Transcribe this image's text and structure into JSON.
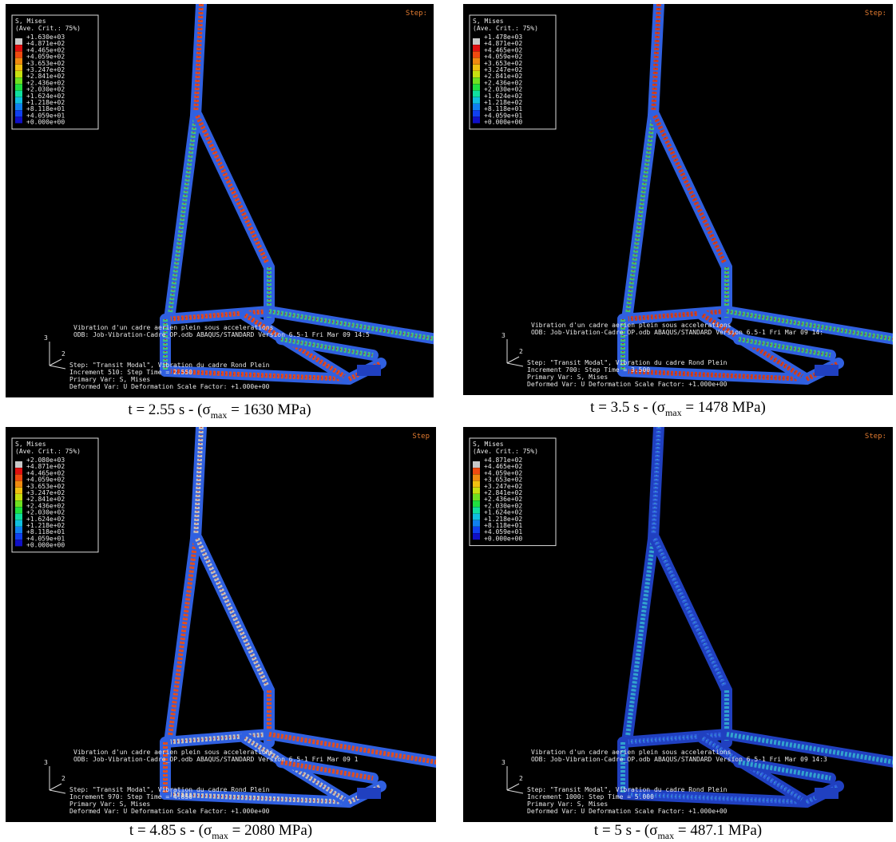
{
  "panels": [
    {
      "step_label": "Step:",
      "legend": {
        "title": "S, Mises",
        "subtitle": "(Ave. Crit.: 75%)",
        "values": [
          "+1.630e+03",
          "+4.871e+02",
          "+4.465e+02",
          "+4.059e+02",
          "+3.653e+02",
          "+3.247e+02",
          "+2.841e+02",
          "+2.436e+02",
          "+2.030e+02",
          "+1.624e+02",
          "+1.218e+02",
          "+8.118e+01",
          "+4.059e+01",
          "+0.000e+00"
        ]
      },
      "info": [
        "Vibration d'un cadre aerien plein sous accelerations",
        "ODB: Job-Vibration-Cadre_OP.odb    ABAQUS/STANDARD Version 6.5-1    Fri Mar 09 14:5"
      ],
      "axes": [
        "3",
        "2"
      ],
      "step": [
        "Step: \"Transit Modal\", Vibration du cadre Rond Plein",
        "Increment    510: Step Time =    2.550",
        "Primary Var: S, Mises",
        "Deformed Var: U   Deformation Scale Factor: +1.000e+00"
      ],
      "caption": {
        "prefix": "t = 2.55 s - (σ",
        "sub": "max",
        "suffix": " = 1630 MPa)"
      }
    },
    {
      "step_label": "Step:",
      "legend": {
        "title": "S, Mises",
        "subtitle": "(Ave. Crit.: 75%)",
        "values": [
          "+1.478e+03",
          "+4.871e+02",
          "+4.465e+02",
          "+4.059e+02",
          "+3.653e+02",
          "+3.247e+02",
          "+2.841e+02",
          "+2.436e+02",
          "+2.030e+02",
          "+1.624e+02",
          "+1.218e+02",
          "+8.118e+01",
          "+4.059e+01",
          "+0.000e+00"
        ]
      },
      "info": [
        "Vibration d'un cadre aerien plein sous accelerations",
        "ODB: Job-Vibration-Cadre_OP.odb    ABAQUS/STANDARD Version 6.5-1    Fri Mar 09 14:"
      ],
      "axes": [
        "3",
        "2"
      ],
      "step": [
        "Step: \"Transit Modal\", Vibration du cadre Rond Plein",
        "Increment    700: Step Time =    3.500",
        "Primary Var: S, Mises",
        "Deformed Var: U   Deformation Scale Factor: +1.000e+00"
      ],
      "caption": {
        "prefix": "t = 3.5 s - (σ",
        "sub": "max",
        "suffix": " = 1478 MPa)"
      }
    },
    {
      "step_label": "Step",
      "legend": {
        "title": "S, Mises",
        "subtitle": "(Ave. Crit.: 75%)",
        "values": [
          "+2.080e+03",
          "+4.871e+02",
          "+4.465e+02",
          "+4.059e+02",
          "+3.653e+02",
          "+3.247e+02",
          "+2.841e+02",
          "+2.436e+02",
          "+2.030e+02",
          "+1.624e+02",
          "+1.218e+02",
          "+8.118e+01",
          "+4.059e+01",
          "+0.000e+00"
        ]
      },
      "info": [
        "Vibration d'un cadre aerien plein sous accelerations",
        "ODB: Job-Vibration-Cadre_OP.odb    ABAQUS/STANDARD Version 6.5-1    Fri Mar 09 1"
      ],
      "axes": [
        "3",
        "2"
      ],
      "step": [
        "Step: \"Transit Modal\", Vibration du cadre Rond Plein",
        "Increment    970: Step Time =    4.850",
        "Primary Var: S, Mises",
        "Deformed Var: U   Deformation Scale Factor: +1.000e+00"
      ],
      "caption": {
        "prefix": "t = 4.85 s - (σ",
        "sub": "max",
        "suffix": " = 2080 MPa)"
      }
    },
    {
      "step_label": "Step:",
      "legend": {
        "title": "S, Mises",
        "subtitle": "(Ave. Crit.: 75%)",
        "values": [
          "+4.871e+02",
          "+4.465e+02",
          "+4.059e+02",
          "+3.653e+02",
          "+3.247e+02",
          "+2.841e+02",
          "+2.436e+02",
          "+2.030e+02",
          "+1.624e+02",
          "+1.218e+02",
          "+8.118e+01",
          "+4.059e+01",
          "+0.000e+00"
        ]
      },
      "info": [
        "Vibration d'un cadre aerien plein sous accelerations",
        "ODB: Job-Vibration-Cadre_OP.odb    ABAQUS/STANDARD Version 6.5-1    Fri Mar 09 14:3"
      ],
      "axes": [
        "3",
        "2"
      ],
      "step": [
        "Step: \"Transit Modal\", Vibration du cadre Rond Plein",
        "Increment   1000: Step Time =    5.000",
        "Primary Var: S, Mises",
        "Deformed Var: U   Deformation Scale Factor: +1.000e+00"
      ],
      "caption": {
        "prefix": "t = 5 s - (σ",
        "sub": "max",
        "suffix": " = 487.1 MPa)"
      }
    }
  ]
}
